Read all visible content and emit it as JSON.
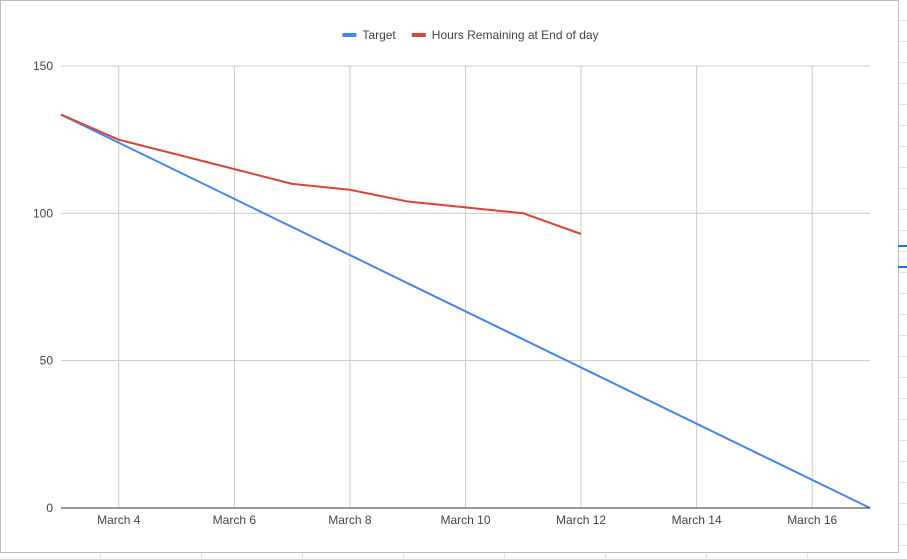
{
  "chart_data": {
    "type": "line",
    "title": "",
    "xlabel": "",
    "ylabel": "",
    "ylim": [
      0,
      150
    ],
    "yticks": [
      0,
      50,
      100,
      150
    ],
    "x_tick_labels": [
      "March 4",
      "March 6",
      "March 8",
      "March 10",
      "March 12",
      "March 14",
      "March 16"
    ],
    "x_tick_days": [
      4,
      6,
      8,
      10,
      12,
      14,
      16
    ],
    "xlim_days": [
      3,
      17
    ],
    "grid": true,
    "legend_position": "top",
    "series": [
      {
        "name": "Target",
        "color": "#4285f4",
        "x": [
          3,
          17
        ],
        "values": [
          133.5,
          0
        ]
      },
      {
        "name": "Hours Remaining at End of day",
        "color": "#db4437",
        "x": [
          3,
          4,
          5,
          6,
          7,
          8,
          9,
          10,
          11,
          12
        ],
        "values": [
          133.5,
          125,
          120,
          115,
          110,
          108,
          104,
          102,
          100,
          93
        ]
      }
    ]
  }
}
